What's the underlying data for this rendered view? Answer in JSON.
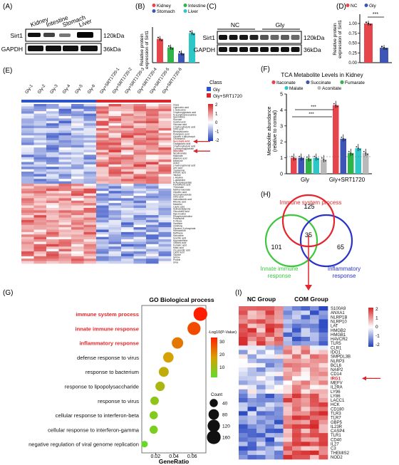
{
  "panels": {
    "A": {
      "label": "(A)",
      "lanes": [
        "Kidney",
        "Intestine",
        "Stomach",
        "Liver"
      ],
      "rows": [
        {
          "name": "Sirt1",
          "kda": "120kDa"
        },
        {
          "name": "GAPDH",
          "kda": "36kDa"
        }
      ]
    },
    "B": {
      "label": "(B)",
      "ylabel_line1": "Relative protein",
      "ylabel_line2": "expression of Sirt1",
      "legend": [
        "Kidney",
        "Intestine",
        "Stomach",
        "Liver"
      ],
      "colors": [
        "#e5454b",
        "#2fb34a",
        "#3d55b6",
        "#2ec7c8"
      ]
    },
    "C": {
      "label": "(C)",
      "groups": [
        "NC",
        "Gly"
      ],
      "rows": [
        {
          "name": "Sirt1",
          "kda": "120kDa"
        },
        {
          "name": "GAPDH",
          "kda": "36kDa"
        }
      ]
    },
    "D": {
      "label": "(D)",
      "ylabel_line1": "Relative protein",
      "ylabel_line2": "expression of Sirt1",
      "legend": [
        "NC",
        "Gly"
      ],
      "colors": [
        "#e5454b",
        "#3d55b6"
      ],
      "sig": "***"
    },
    "E": {
      "label": "(E)",
      "columns": [
        "Gly-1",
        "Gly-2",
        "Gly-3",
        "Gly-4",
        "Gly-5",
        "Gly-6",
        "Gly+SRT1720-1",
        "Gly+SRT1720-2",
        "Gly+SRT1720-3",
        "Gly+SRT1720-4",
        "Gly+SRT1720-5",
        "Gly+SRT1720-6"
      ],
      "class_title": "Class",
      "classes": [
        "Gly",
        "Gly+SRT1720"
      ],
      "class_colors": [
        "#2a55c9",
        "#d9262b"
      ],
      "highlighted": [
        "Succinate acid",
        "Itaconate"
      ],
      "metabolites": [
        "Class",
        "Lignoceric acid",
        "L-Isoleucine",
        "3-hydroxyglutaric acid",
        "N-acetylmannosamine",
        "Spermidine",
        "Sucrose",
        "Inositol acid",
        "Glucose acid",
        "2-hydroxybutyric acid",
        "Citric acid",
        "Benzylsuccinic",
        "Pelargonic acid",
        "Glycine 4-dihydroxyb",
        "Cholesterol",
        "Succinate acid",
        "Oxalglutaric acid",
        "3-hydroxybutyric acid",
        "3-phosphoglycerate",
        "Itaconate",
        "Nicotinamide",
        "Malonate",
        "Allantoic acid",
        "Mannose",
        "Uracil",
        "2-hydroxyphenyl acid",
        "Uric acid",
        "Tryptamine",
        "Pyruvic acid",
        "Taurine",
        "L-Alanine",
        "L-glutamine",
        "N-Acetylaspartate",
        "Pantothenic acid",
        "Threonate",
        "Methyl malonate",
        "Glyceric acid",
        "Succinylmalonate",
        "Citric acid",
        "Iminodiacetic acid",
        "Ribonic acid",
        "Mannitol",
        "Lauric acid",
        "Isobutyrylglycine",
        "Glucuronic acid",
        "Myo-Inositol",
        "Phosphorylcholine",
        "Putrescine",
        "D-ribose",
        "Xanthine",
        "Ornithine",
        "Glycerol-3-phosphate",
        "Homoserine",
        "Raffinose",
        "Sarcosine",
        "Isocitric acid",
        "Hypoxanthine",
        "Glutaric acid",
        "Fumaric acid",
        "Malic acid",
        "Cis-aconitic acid",
        "Lactic acid",
        "Glycine",
        "Serine",
        "Proline",
        "Urea"
      ],
      "colorbar_ticks": [
        "2",
        "1",
        "0",
        "-1",
        "-2"
      ]
    },
    "F": {
      "label": "(F)",
      "title": "TCA Metabolite Levels in Kidney",
      "ylabel_line1": "Metabolite abundance",
      "ylabel_line2": "(relative to normal)",
      "yticks": [
        "0",
        "1",
        "2",
        "3",
        "4",
        "5"
      ],
      "groups": [
        "Gly",
        "Gly+SRT1720"
      ],
      "sig_marks": [
        "***",
        "***"
      ]
    },
    "G": {
      "label": "(G)",
      "title": "GO Biological process",
      "xlabel": "GeneRatio",
      "xticks": [
        "0.02",
        "0.04",
        "0.06"
      ],
      "size_legend_title": "Count",
      "size_legend_values": [
        "40",
        "80",
        "120",
        "160"
      ],
      "color_legend_title": "-Log10(P-Value)",
      "color_legend_ticks": [
        "30",
        "20",
        "10"
      ]
    },
    "H": {
      "label": "(H)",
      "sets": {
        "top": "Immune system process",
        "left_line1": "Innate immune",
        "left_line2": "response",
        "right_line1": "Inflammatory",
        "right_line2": "response"
      },
      "counts": {
        "top_only": "125",
        "left_only": "101",
        "right_only": "65",
        "center": "35"
      },
      "colors": {
        "top": "#e3262b",
        "left": "#3ec63f",
        "right": "#2a33c9"
      }
    },
    "I": {
      "label": "(I)",
      "group_a": "NC Group",
      "group_b": "COM Group",
      "genes": [
        "S100A9",
        "ANXA1",
        "NLRP1B",
        "NLRP10",
        "LAT",
        "HMGB2",
        "HMGB1",
        "HAVCR2",
        "TLR5",
        "CLR1",
        "IDO1",
        "SMPDL3B",
        "NLRP3",
        "BCL6",
        "NAIP2",
        "CD14",
        "IRG1",
        "MEFV",
        "IL2RA",
        "LY96",
        "LY86",
        "LACC1",
        "HCK",
        "CD180",
        "TLR3",
        "TLR7",
        "GBP5",
        "IL23R",
        "CASP4",
        "TLR1",
        "CD40",
        "IL27",
        "C3",
        "THEMIS2",
        "NOD2"
      ],
      "highlighted_gene": "IRG1",
      "colorbar_ticks": [
        "2",
        "1",
        "0",
        "-1",
        "-2"
      ]
    }
  },
  "chart_data": [
    {
      "type": "bar",
      "panel": "B",
      "categories": [
        "Kidney",
        "Intestine",
        "Stomach",
        "Liver"
      ],
      "values": [
        2.8,
        1.8,
        1.1,
        3.5
      ],
      "ylim": [
        0,
        4.2
      ]
    },
    {
      "type": "bar",
      "panel": "D",
      "categories": [
        "NC",
        "Gly"
      ],
      "values": [
        1.0,
        0.38
      ],
      "yticks": [
        "1.00",
        "0.75",
        "0.50",
        "0.25",
        "0.00"
      ],
      "ylim": [
        0,
        1.2
      ]
    },
    {
      "type": "bar",
      "panel": "F",
      "title": "TCA Metabolite Levels in Kidney",
      "ylabel": "Metabolite abundance (relative to normal)",
      "categories": [
        "Gly",
        "Gly+SRT1720"
      ],
      "series": [
        {
          "name": "Itaconate",
          "color": "#e5454b",
          "values": [
            1.0,
            4.3
          ]
        },
        {
          "name": "Succinate",
          "color": "#3d55b6",
          "values": [
            1.0,
            2.2
          ]
        },
        {
          "name": "Fumarate",
          "color": "#2fb34a",
          "values": [
            0.95,
            1.3
          ]
        },
        {
          "name": "Malate",
          "color": "#2ec7c8",
          "values": [
            1.0,
            1.6
          ]
        },
        {
          "name": "Aconitate",
          "color": "#b9b9b9",
          "values": [
            0.9,
            1.3
          ]
        }
      ],
      "ylim": [
        0,
        5
      ]
    },
    {
      "type": "scatter",
      "panel": "G",
      "title": "GO Biological process",
      "xlabel": "GeneRatio",
      "xlim": [
        0.005,
        0.075
      ],
      "terms": [
        "immune system process",
        "innate immune response",
        "inflammatory response",
        "defense response to virus",
        "response to bacterium",
        "response to lipopolysaccharide",
        "response to virus",
        "cellular response to interferon-beta",
        "cellular response to interferon-gamma",
        "negative regulation of viral genome replication"
      ],
      "highlighted_terms": [
        "immune system process",
        "innate immune response",
        "inflammatory response"
      ],
      "gene_ratio": [
        0.069,
        0.062,
        0.044,
        0.034,
        0.029,
        0.025,
        0.019,
        0.018,
        0.018,
        0.008
      ],
      "count": [
        160,
        140,
        100,
        80,
        70,
        60,
        45,
        40,
        40,
        20
      ],
      "neg_log10_p": [
        40,
        34,
        28,
        22,
        19,
        16,
        12,
        10,
        9,
        6
      ]
    }
  ]
}
